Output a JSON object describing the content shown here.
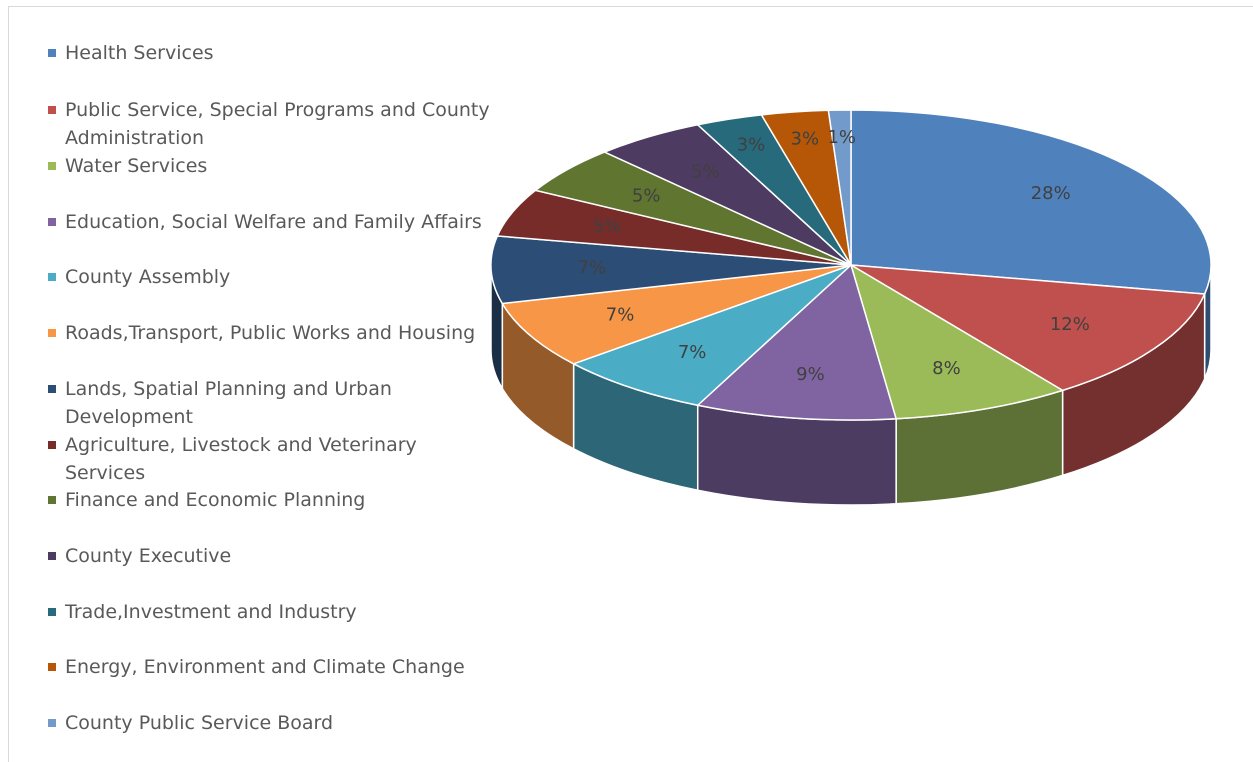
{
  "chart_data": {
    "type": "pie",
    "categories": [
      "Health Services",
      "Public Service, Special Programs and County Administration",
      "Water Services",
      "Education, Social Welfare and Family Affairs",
      "County Assembly",
      "Roads,Transport, Public Works and Housing",
      "Lands, Spatial Planning and Urban Development",
      "Agriculture, Livestock  and Veterinary Services",
      "Finance and Economic Planning",
      "County Executive",
      "Trade,Investment and  Industry",
      "Energy, Environment and Climate Change",
      "County Public Service Board"
    ],
    "values": [
      28,
      12,
      8,
      9,
      7,
      7,
      7,
      5,
      5,
      5,
      3,
      3,
      1
    ],
    "value_labels": [
      "28%",
      "12%",
      "8%",
      "9%",
      "7%",
      "7%",
      "7%",
      "5%",
      "5%",
      "5%",
      "3%",
      "3%",
      "1%"
    ],
    "colors": [
      "#4f81bd",
      "#c0504d",
      "#9bbb59",
      "#8064a2",
      "#4bacc6",
      "#f79646",
      "#2c4d75",
      "#772c2a",
      "#5f7530",
      "#4d3b62",
      "#276a7c",
      "#b65708",
      "#729aca"
    ],
    "legend": "left"
  }
}
